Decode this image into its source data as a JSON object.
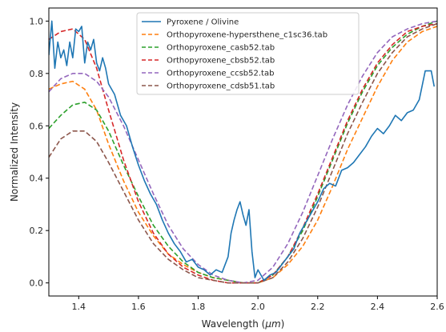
{
  "chart_data": {
    "type": "line",
    "title": "",
    "xlabel_prefix": "Wavelength (",
    "xlabel_unit": "μm",
    "xlabel_suffix": ")",
    "ylabel": "Normalized Intensity",
    "xlim": [
      1.3,
      2.6
    ],
    "ylim": [
      -0.05,
      1.05
    ],
    "xticks": [
      1.4,
      1.6,
      1.8,
      2.0,
      2.2,
      2.4,
      2.6
    ],
    "yticks": [
      0.0,
      0.2,
      0.4,
      0.6,
      0.8,
      1.0
    ],
    "xtick_labels": [
      "1.4",
      "1.6",
      "1.8",
      "2.0",
      "2.2",
      "2.4",
      "2.6"
    ],
    "ytick_labels": [
      "0.0",
      "0.2",
      "0.4",
      "0.6",
      "0.8",
      "1.0"
    ],
    "grid": false,
    "legend_position": "top-center",
    "series": [
      {
        "name": "Pyroxene / Olivine",
        "color": "#1f77b4",
        "style": "solid",
        "x": [
          1.3,
          1.31,
          1.32,
          1.33,
          1.34,
          1.35,
          1.36,
          1.37,
          1.38,
          1.39,
          1.4,
          1.41,
          1.42,
          1.43,
          1.44,
          1.45,
          1.46,
          1.47,
          1.48,
          1.49,
          1.5,
          1.52,
          1.54,
          1.56,
          1.58,
          1.6,
          1.62,
          1.64,
          1.66,
          1.68,
          1.7,
          1.72,
          1.74,
          1.76,
          1.78,
          1.8,
          1.82,
          1.84,
          1.86,
          1.88,
          1.9,
          1.91,
          1.92,
          1.93,
          1.94,
          1.95,
          1.96,
          1.97,
          1.98,
          1.99,
          2.0,
          2.02,
          2.04,
          2.06,
          2.08,
          2.1,
          2.12,
          2.14,
          2.16,
          2.18,
          2.2,
          2.22,
          2.24,
          2.26,
          2.28,
          2.3,
          2.32,
          2.34,
          2.36,
          2.38,
          2.4,
          2.42,
          2.44,
          2.46,
          2.48,
          2.5,
          2.52,
          2.54,
          2.56,
          2.58,
          2.59
        ],
        "y": [
          0.87,
          1.0,
          0.82,
          0.92,
          0.86,
          0.89,
          0.83,
          0.92,
          0.86,
          0.97,
          0.96,
          0.98,
          0.84,
          0.92,
          0.89,
          0.93,
          0.84,
          0.81,
          0.86,
          0.82,
          0.76,
          0.72,
          0.64,
          0.6,
          0.52,
          0.45,
          0.39,
          0.34,
          0.3,
          0.24,
          0.19,
          0.15,
          0.12,
          0.08,
          0.09,
          0.06,
          0.05,
          0.03,
          0.05,
          0.04,
          0.1,
          0.19,
          0.24,
          0.28,
          0.31,
          0.26,
          0.22,
          0.28,
          0.12,
          0.02,
          0.05,
          0.01,
          0.03,
          0.04,
          0.07,
          0.1,
          0.13,
          0.19,
          0.23,
          0.27,
          0.31,
          0.36,
          0.38,
          0.37,
          0.43,
          0.44,
          0.46,
          0.49,
          0.52,
          0.56,
          0.59,
          0.57,
          0.6,
          0.64,
          0.62,
          0.65,
          0.66,
          0.7,
          0.81,
          0.81,
          0.75
        ]
      },
      {
        "name": "Orthopyroxene-hypersthene_c1sc36.tab",
        "color": "#ff7f0e",
        "style": "dashed",
        "x": [
          1.3,
          1.34,
          1.38,
          1.42,
          1.46,
          1.5,
          1.55,
          1.6,
          1.65,
          1.7,
          1.75,
          1.8,
          1.85,
          1.9,
          1.95,
          2.0,
          2.05,
          2.1,
          2.15,
          2.2,
          2.25,
          2.3,
          2.35,
          2.4,
          2.45,
          2.5,
          2.55,
          2.6
        ],
        "y": [
          0.74,
          0.76,
          0.77,
          0.74,
          0.66,
          0.53,
          0.39,
          0.27,
          0.18,
          0.11,
          0.07,
          0.04,
          0.02,
          0.01,
          0.0,
          0.0,
          0.02,
          0.07,
          0.14,
          0.24,
          0.37,
          0.51,
          0.63,
          0.75,
          0.85,
          0.92,
          0.96,
          0.98
        ]
      },
      {
        "name": "Orthopyroxene_casb52.tab",
        "color": "#2ca02c",
        "style": "dashed",
        "x": [
          1.3,
          1.34,
          1.38,
          1.42,
          1.46,
          1.5,
          1.55,
          1.6,
          1.65,
          1.7,
          1.75,
          1.8,
          1.85,
          1.9,
          1.95,
          2.0,
          2.05,
          2.1,
          2.15,
          2.2,
          2.25,
          2.3,
          2.35,
          2.4,
          2.45,
          2.5,
          2.55,
          2.6
        ],
        "y": [
          0.59,
          0.64,
          0.68,
          0.69,
          0.66,
          0.58,
          0.45,
          0.33,
          0.22,
          0.14,
          0.08,
          0.04,
          0.02,
          0.01,
          0.0,
          0.0,
          0.03,
          0.1,
          0.2,
          0.33,
          0.47,
          0.61,
          0.73,
          0.83,
          0.9,
          0.95,
          0.98,
          1.0
        ]
      },
      {
        "name": "Orthopyroxene_cbsb52.tab",
        "color": "#d62728",
        "style": "dashed",
        "x": [
          1.3,
          1.34,
          1.38,
          1.42,
          1.46,
          1.5,
          1.55,
          1.6,
          1.65,
          1.7,
          1.75,
          1.8,
          1.85,
          1.9,
          1.95,
          2.0,
          2.05,
          2.1,
          2.15,
          2.2,
          2.25,
          2.3,
          2.35,
          2.4,
          2.45,
          2.5,
          2.55,
          2.6
        ],
        "y": [
          0.93,
          0.96,
          0.97,
          0.93,
          0.82,
          0.66,
          0.47,
          0.31,
          0.19,
          0.11,
          0.06,
          0.03,
          0.01,
          0.0,
          0.0,
          0.0,
          0.03,
          0.1,
          0.21,
          0.34,
          0.48,
          0.62,
          0.74,
          0.84,
          0.91,
          0.96,
          0.98,
          0.99
        ]
      },
      {
        "name": "Orthopyroxene_ccsb52.tab",
        "color": "#9467bd",
        "style": "dashed",
        "x": [
          1.3,
          1.34,
          1.38,
          1.42,
          1.46,
          1.5,
          1.55,
          1.6,
          1.65,
          1.7,
          1.75,
          1.8,
          1.85,
          1.9,
          1.95,
          2.0,
          2.05,
          2.1,
          2.15,
          2.2,
          2.25,
          2.3,
          2.35,
          2.4,
          2.45,
          2.5,
          2.55,
          2.6
        ],
        "y": [
          0.73,
          0.78,
          0.8,
          0.8,
          0.77,
          0.71,
          0.6,
          0.47,
          0.34,
          0.22,
          0.13,
          0.07,
          0.03,
          0.01,
          0.0,
          0.01,
          0.06,
          0.15,
          0.27,
          0.41,
          0.55,
          0.68,
          0.79,
          0.88,
          0.94,
          0.97,
          0.99,
          1.0
        ]
      },
      {
        "name": "Orthopyroxene_cdsb51.tab",
        "color": "#8c564b",
        "style": "dashed",
        "x": [
          1.3,
          1.34,
          1.38,
          1.42,
          1.46,
          1.5,
          1.55,
          1.6,
          1.65,
          1.7,
          1.75,
          1.8,
          1.85,
          1.9,
          1.95,
          2.0,
          2.05,
          2.1,
          2.15,
          2.2,
          2.25,
          2.3,
          2.35,
          2.4,
          2.45,
          2.5,
          2.55,
          2.6
        ],
        "y": [
          0.48,
          0.55,
          0.58,
          0.58,
          0.54,
          0.46,
          0.35,
          0.24,
          0.15,
          0.09,
          0.05,
          0.02,
          0.01,
          0.0,
          0.0,
          0.0,
          0.02,
          0.08,
          0.17,
          0.29,
          0.43,
          0.57,
          0.69,
          0.8,
          0.88,
          0.94,
          0.97,
          0.99
        ]
      }
    ]
  }
}
